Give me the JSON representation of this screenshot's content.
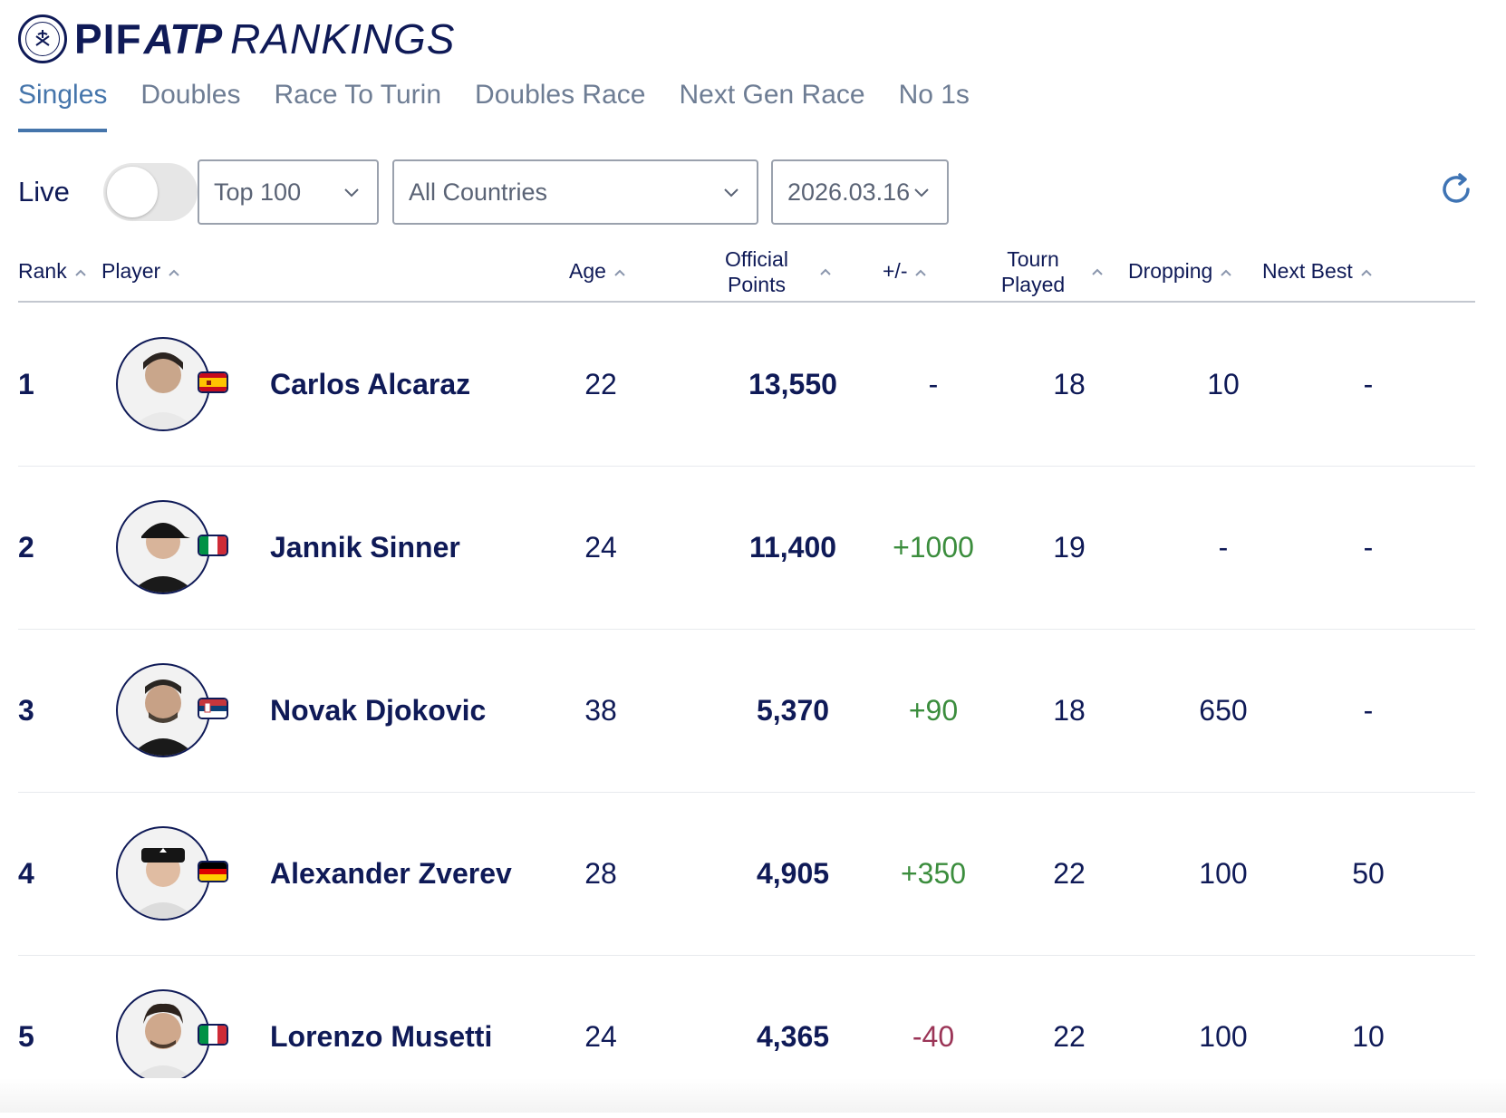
{
  "brand": {
    "prefix": "PIF",
    "mid": "ATP",
    "suffix": "RANKINGS"
  },
  "tabs": [
    {
      "label": "Singles",
      "active": true
    },
    {
      "label": "Doubles",
      "active": false
    },
    {
      "label": "Race To Turin",
      "active": false
    },
    {
      "label": "Doubles Race",
      "active": false
    },
    {
      "label": "Next Gen Race",
      "active": false
    },
    {
      "label": "No 1s",
      "active": false
    }
  ],
  "controls": {
    "live_label": "Live",
    "live_on": false,
    "range_select": "Top 100",
    "country_select": "All Countries",
    "date_select": "2026.03.16"
  },
  "columns": {
    "rank": "Rank",
    "player": "Player",
    "age": "Age",
    "points_1": "Official",
    "points_2": "Points",
    "change": "+/-",
    "tp_1": "Tourn",
    "tp_2": "Played",
    "dropping": "Dropping",
    "next_best": "Next Best"
  },
  "players": [
    {
      "rank": "1",
      "name": "Carlos Alcaraz",
      "age": "22",
      "points": "13,550",
      "change": "-",
      "tourn_played": "18",
      "dropping": "10",
      "next_best": "-",
      "flag": "spain"
    },
    {
      "rank": "2",
      "name": "Jannik Sinner",
      "age": "24",
      "points": "11,400",
      "change": "+1000",
      "tourn_played": "19",
      "dropping": "-",
      "next_best": "-",
      "flag": "italy"
    },
    {
      "rank": "3",
      "name": "Novak Djokovic",
      "age": "38",
      "points": "5,370",
      "change": "+90",
      "tourn_played": "18",
      "dropping": "650",
      "next_best": "-",
      "flag": "serbia"
    },
    {
      "rank": "4",
      "name": "Alexander Zverev",
      "age": "28",
      "points": "4,905",
      "change": "+350",
      "tourn_played": "22",
      "dropping": "100",
      "next_best": "50",
      "flag": "germany"
    },
    {
      "rank": "5",
      "name": "Lorenzo Musetti",
      "age": "24",
      "points": "4,365",
      "change": "-40",
      "tourn_played": "22",
      "dropping": "100",
      "next_best": "10",
      "flag": "italy"
    }
  ],
  "colors": {
    "navy": "#0f1a57",
    "active_tab": "#4575ab",
    "positive": "#3b8d3d",
    "negative": "#9b3557"
  }
}
